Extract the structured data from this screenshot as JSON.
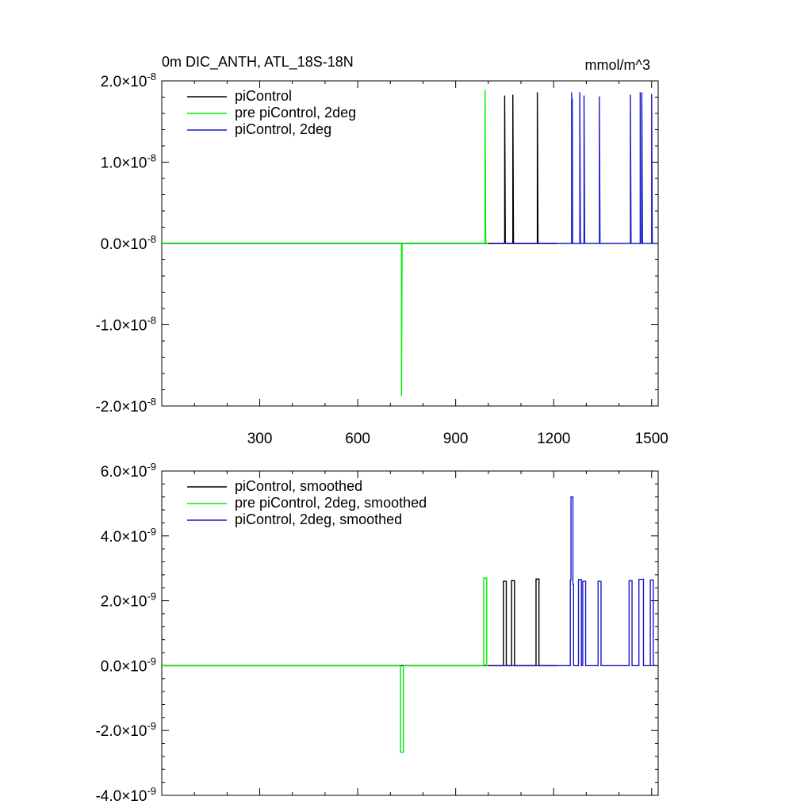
{
  "chart_data": [
    {
      "type": "line",
      "title": "0m DIC_ANTH, ATL_18S-18N",
      "units": "mmol/m^3",
      "xlim": [
        0,
        1520
      ],
      "ylim": [
        -2e-08,
        2e-08
      ],
      "x_ticks": [
        300,
        600,
        900,
        1200,
        1500
      ],
      "x_tick_labels": [
        "300",
        "600",
        "900",
        "1200",
        "1500"
      ],
      "y_ticks": [
        -2e-08,
        -1e-08,
        0,
        1e-08,
        2e-08
      ],
      "y_tick_labels": [
        {
          "mantissa": "-2.0",
          "exp": "-8"
        },
        {
          "mantissa": "-1.0",
          "exp": "-8"
        },
        {
          "mantissa": "0.0",
          "exp": "-8"
        },
        {
          "mantissa": "1.0",
          "exp": "-8"
        },
        {
          "mantissa": "2.0",
          "exp": "-8"
        }
      ],
      "legend_position": "top-left",
      "series": [
        {
          "name": "piControl",
          "color": "#000000",
          "points": [
            [
              0,
              0
            ],
            [
              1050,
              0
            ],
            [
              1050,
              1.82e-08
            ],
            [
              1052,
              0
            ],
            [
              1075,
              0
            ],
            [
              1075,
              1.83e-08
            ],
            [
              1077,
              0
            ],
            [
              1150,
              0
            ],
            [
              1150,
              1.86e-08
            ],
            [
              1152,
              0
            ],
            [
              1210,
              0
            ]
          ]
        },
        {
          "name": "pre piControl, 2deg",
          "color": "#00ee00",
          "points": [
            [
              0,
              0
            ],
            [
              734,
              0
            ],
            [
              734,
              -1.88e-08
            ],
            [
              736,
              0
            ],
            [
              990,
              0
            ],
            [
              990,
              1.89e-08
            ],
            [
              992,
              0
            ],
            [
              1000,
              0
            ]
          ]
        },
        {
          "name": "piControl, 2deg",
          "color": "#1a1acc",
          "points": [
            [
              1010,
              0
            ],
            [
              1255,
              0
            ],
            [
              1255,
              1.86e-08
            ],
            [
              1256,
              0
            ],
            [
              1257,
              0
            ],
            [
              1257,
              1.78e-08
            ],
            [
              1258,
              0
            ],
            [
              1280,
              0
            ],
            [
              1280,
              1.86e-08
            ],
            [
              1282,
              0
            ],
            [
              1293,
              0
            ],
            [
              1293,
              1.82e-08
            ],
            [
              1295,
              0
            ],
            [
              1340,
              0
            ],
            [
              1340,
              1.81e-08
            ],
            [
              1342,
              0
            ],
            [
              1435,
              0
            ],
            [
              1435,
              1.83e-08
            ],
            [
              1437,
              0
            ],
            [
              1465,
              0
            ],
            [
              1465,
              1.86e-08
            ],
            [
              1466,
              0
            ],
            [
              1470,
              0
            ],
            [
              1470,
              1.86e-08
            ],
            [
              1472,
              0
            ],
            [
              1500,
              0
            ],
            [
              1500,
              1.84e-08
            ],
            [
              1502,
              0
            ],
            [
              1520,
              0
            ]
          ]
        }
      ]
    },
    {
      "type": "line",
      "title": "",
      "xlim": [
        0,
        1520
      ],
      "ylim": [
        -4e-09,
        6e-09
      ],
      "x_ticks": [
        300,
        600,
        900,
        1200,
        1500
      ],
      "x_tick_labels": [],
      "y_ticks": [
        -4e-09,
        -2e-09,
        0,
        2e-09,
        4e-09,
        6e-09
      ],
      "y_tick_labels": [
        {
          "mantissa": "-4.0",
          "exp": "-9"
        },
        {
          "mantissa": "-2.0",
          "exp": "-9"
        },
        {
          "mantissa": "0.0",
          "exp": "-9"
        },
        {
          "mantissa": "2.0",
          "exp": "-9"
        },
        {
          "mantissa": "4.0",
          "exp": "-9"
        },
        {
          "mantissa": "6.0",
          "exp": "-9"
        }
      ],
      "legend_position": "top-left",
      "series": [
        {
          "name": "piControl, smoothed",
          "color": "#000000",
          "points": [
            [
              0,
              0
            ],
            [
              1046,
              0
            ],
            [
              1046,
              2.6e-09
            ],
            [
              1055,
              2.6e-09
            ],
            [
              1055,
              0
            ],
            [
              1071,
              0
            ],
            [
              1071,
              2.62e-09
            ],
            [
              1080,
              2.62e-09
            ],
            [
              1080,
              0
            ],
            [
              1146,
              0
            ],
            [
              1146,
              2.67e-09
            ],
            [
              1155,
              2.67e-09
            ],
            [
              1155,
              0
            ],
            [
              1210,
              0
            ]
          ]
        },
        {
          "name": "pre piControl, 2deg, smoothed",
          "color": "#00ee00",
          "points": [
            [
              0,
              0
            ],
            [
              731,
              0
            ],
            [
              731,
              -2.67e-09
            ],
            [
              740,
              -2.67e-09
            ],
            [
              740,
              0
            ],
            [
              986,
              0
            ],
            [
              986,
              2.7e-09
            ],
            [
              995,
              2.7e-09
            ],
            [
              995,
              0
            ],
            [
              1000,
              0
            ]
          ]
        },
        {
          "name": "piControl, 2deg, smoothed",
          "color": "#1a1acc",
          "points": [
            [
              1010,
              0
            ],
            [
              1251,
              0
            ],
            [
              1251,
              2.64e-09
            ],
            [
              1253,
              2.64e-09
            ],
            [
              1253,
              5.2e-09
            ],
            [
              1259,
              5.2e-09
            ],
            [
              1259,
              2.5e-09
            ],
            [
              1261,
              2.5e-09
            ],
            [
              1261,
              0
            ],
            [
              1276,
              0
            ],
            [
              1276,
              2.65e-09
            ],
            [
              1285,
              2.65e-09
            ],
            [
              1285,
              0
            ],
            [
              1289,
              0
            ],
            [
              1289,
              2.6e-09
            ],
            [
              1298,
              2.6e-09
            ],
            [
              1298,
              0
            ],
            [
              1336,
              0
            ],
            [
              1336,
              2.6e-09
            ],
            [
              1345,
              2.6e-09
            ],
            [
              1345,
              0
            ],
            [
              1431,
              0
            ],
            [
              1431,
              2.62e-09
            ],
            [
              1440,
              2.62e-09
            ],
            [
              1440,
              0
            ],
            [
              1461,
              0
            ],
            [
              1461,
              2.66e-09
            ],
            [
              1475,
              2.66e-09
            ],
            [
              1475,
              0
            ],
            [
              1496,
              0
            ],
            [
              1496,
              2.64e-09
            ],
            [
              1505,
              2.64e-09
            ],
            [
              1505,
              0
            ],
            [
              1520,
              0
            ]
          ]
        }
      ]
    }
  ]
}
